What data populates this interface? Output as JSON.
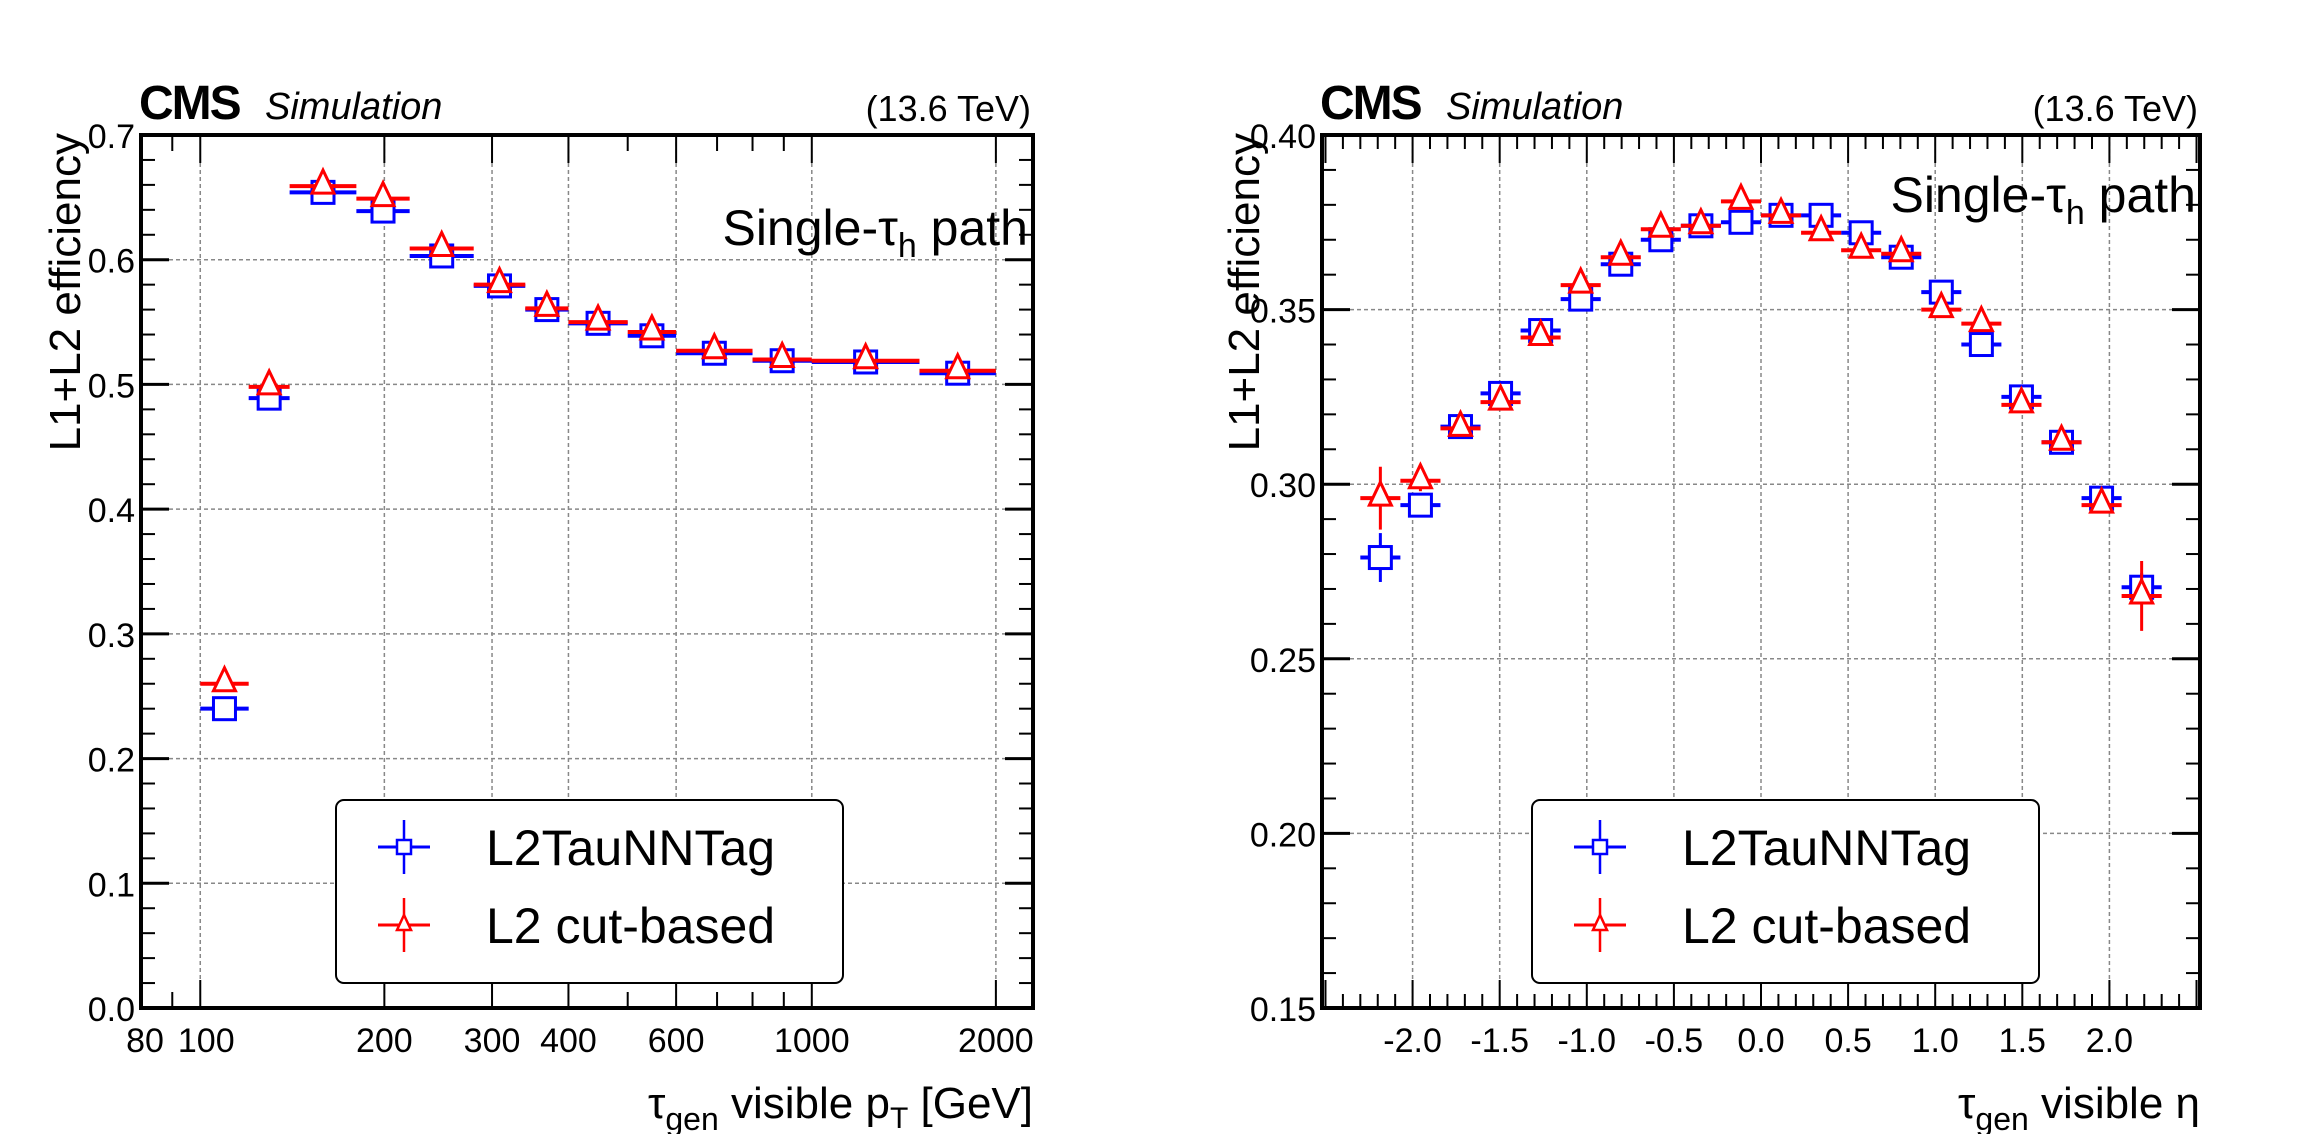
{
  "chart_data": [
    {
      "type": "scatter",
      "title": "",
      "header": {
        "experiment": "CMS",
        "label": "Simulation",
        "energy": "(13.6 TeV)"
      },
      "annotation": {
        "main": "Single-τ",
        "sub": "h",
        "rest": " path"
      },
      "xlabel": {
        "main": "τ",
        "sub": "gen",
        "mid": " visible p",
        "sub2": "T",
        "rest": " [GeV]"
      },
      "ylabel": "L1+L2 efficiency",
      "xscale": "log",
      "xlim": [
        80,
        2300
      ],
      "ylim": [
        0.0,
        0.7
      ],
      "grid": true,
      "xticks": [
        80,
        100,
        200,
        300,
        400,
        600,
        1000,
        2000
      ],
      "xtick_labels": [
        "80",
        "100",
        "200",
        "300",
        "400",
        "600",
        "1000",
        "2000"
      ],
      "yticks": [
        0.0,
        0.1,
        0.2,
        0.3,
        0.4,
        0.5,
        0.6,
        0.7
      ],
      "ytick_labels": [
        "0.0",
        "0.1",
        "0.2",
        "0.3",
        "0.4",
        "0.5",
        "0.6",
        "0.7"
      ],
      "legend_position": "bottom-center",
      "bin_edges": [
        100,
        120,
        140,
        180,
        220,
        280,
        340,
        400,
        500,
        600,
        800,
        1000,
        1500,
        2000
      ],
      "series": [
        {
          "name": "L2TauNNTag",
          "color": "#0000ff",
          "marker": "open-square",
          "values": [
            0.24,
            0.489,
            0.654,
            0.639,
            0.603,
            0.579,
            0.56,
            0.549,
            0.539,
            0.525,
            0.519,
            0.518,
            0.509
          ],
          "errors": [
            0.003,
            0.003,
            0.003,
            0.003,
            0.003,
            0.003,
            0.003,
            0.003,
            0.003,
            0.003,
            0.003,
            0.003,
            0.003
          ]
        },
        {
          "name": "L2 cut-based",
          "color": "#ff0000",
          "marker": "open-triangle",
          "values": [
            0.26,
            0.498,
            0.659,
            0.649,
            0.609,
            0.58,
            0.561,
            0.55,
            0.542,
            0.527,
            0.52,
            0.519,
            0.511
          ],
          "errors": [
            0.003,
            0.003,
            0.003,
            0.003,
            0.003,
            0.003,
            0.003,
            0.003,
            0.003,
            0.003,
            0.003,
            0.003,
            0.003
          ]
        }
      ]
    },
    {
      "type": "scatter",
      "title": "",
      "header": {
        "experiment": "CMS",
        "label": "Simulation",
        "energy": "(13.6 TeV)"
      },
      "annotation": {
        "main": "Single-τ",
        "sub": "h",
        "rest": " path"
      },
      "xlabel": {
        "main": "τ",
        "sub": "gen",
        "mid": " visible η",
        "sub2": "",
        "rest": ""
      },
      "ylabel": "L1+L2 efficiency",
      "xscale": "linear",
      "xlim": [
        -2.52,
        2.52
      ],
      "ylim": [
        0.15,
        0.4
      ],
      "grid": true,
      "xticks": [
        -2.0,
        -1.5,
        -1.0,
        -0.5,
        0.0,
        0.5,
        1.0,
        1.5,
        2.0
      ],
      "xtick_labels": [
        "-2.0",
        "-1.5",
        "-1.0",
        "-0.5",
        "0.0",
        "0.5",
        "1.0",
        "1.5",
        "2.0"
      ],
      "yticks": [
        0.15,
        0.2,
        0.25,
        0.3,
        0.35,
        0.4
      ],
      "ytick_labels": [
        "0.15",
        "0.20",
        "0.25",
        "0.30",
        "0.35",
        "0.40"
      ],
      "legend_position": "bottom-center",
      "bin_edges": [
        -2.3,
        -2.07,
        -1.84,
        -1.61,
        -1.38,
        -1.15,
        -0.92,
        -0.69,
        -0.46,
        -0.23,
        0.0,
        0.23,
        0.46,
        0.69,
        0.92,
        1.15,
        1.38,
        1.61,
        1.84,
        2.07,
        2.3
      ],
      "series": [
        {
          "name": "L2TauNNTag",
          "color": "#0000ff",
          "marker": "open-square",
          "values": [
            0.279,
            0.294,
            0.3165,
            0.326,
            0.344,
            0.353,
            0.363,
            0.37,
            0.374,
            0.375,
            0.377,
            0.377,
            0.372,
            0.365,
            0.355,
            0.34,
            0.325,
            0.312,
            0.296,
            0.2705
          ],
          "errors": [
            0.007,
            0.003,
            0.002,
            0.002,
            0.002,
            0.002,
            0.002,
            0.002,
            0.002,
            0.002,
            0.002,
            0.002,
            0.002,
            0.002,
            0.002,
            0.002,
            0.002,
            0.002,
            0.002,
            0.004
          ]
        },
        {
          "name": "L2 cut-based",
          "color": "#ff0000",
          "marker": "open-triangle",
          "values": [
            0.296,
            0.301,
            0.316,
            0.3235,
            0.342,
            0.357,
            0.365,
            0.373,
            0.374,
            0.381,
            0.377,
            0.372,
            0.367,
            0.366,
            0.35,
            0.346,
            0.3227,
            0.312,
            0.294,
            0.268
          ],
          "errors": [
            0.009,
            0.003,
            0.002,
            0.002,
            0.002,
            0.002,
            0.002,
            0.002,
            0.002,
            0.002,
            0.002,
            0.002,
            0.002,
            0.002,
            0.002,
            0.002,
            0.002,
            0.002,
            0.002,
            0.01
          ]
        }
      ]
    }
  ]
}
